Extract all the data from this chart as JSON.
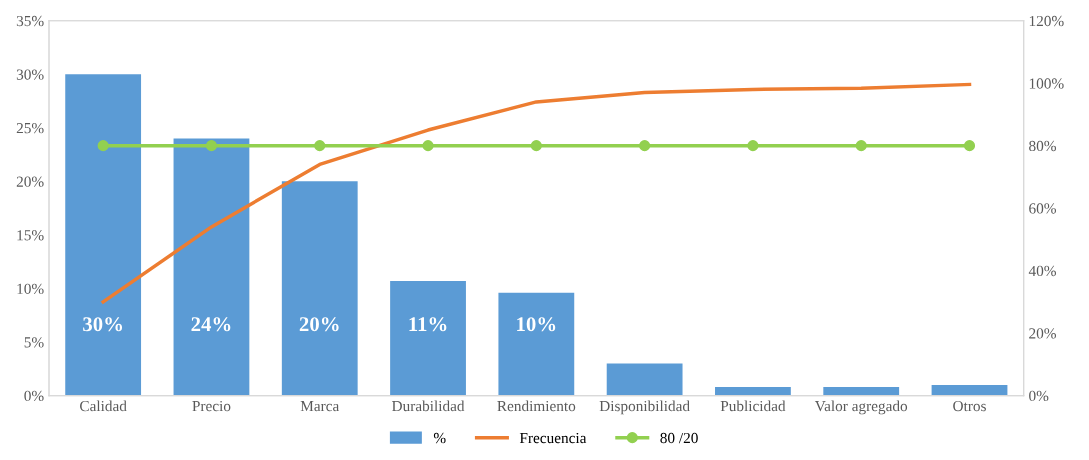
{
  "chart_data": {
    "type": "bar",
    "categories": [
      "Calidad",
      "Precio",
      "Marca",
      "Durabilidad",
      "Rendimiento",
      "Disponibilidad",
      "Publicidad",
      "Valor agregado",
      "Otros"
    ],
    "series": [
      {
        "name": "%",
        "color": "#5b9bd5",
        "values": [
          30,
          24,
          20,
          10.7,
          9.6,
          3.0,
          0.8,
          0.8,
          1.0
        ],
        "value_labels": [
          "30%",
          "24%",
          "20%",
          "11%",
          "10%",
          null,
          null,
          null,
          null
        ]
      },
      {
        "name": "Frecuencia",
        "type": "line",
        "axis": "y2",
        "color": "#ed7d31",
        "marker": "none",
        "values": [
          30,
          54,
          74,
          85,
          94,
          97,
          98,
          98.4,
          99.6
        ]
      },
      {
        "name": "80 /20",
        "type": "line",
        "axis": "y2",
        "color": "#92d050",
        "marker": "circle",
        "values": [
          80,
          80,
          80,
          80,
          80,
          80,
          80,
          80,
          80
        ]
      }
    ],
    "ylim": [
      0,
      35
    ],
    "yticks": [
      {
        "value": 0,
        "label": "0%"
      },
      {
        "value": 5,
        "label": "5%"
      },
      {
        "value": 10,
        "label": "10%"
      },
      {
        "value": 15,
        "label": "15%"
      },
      {
        "value": 20,
        "label": "20%"
      },
      {
        "value": 25,
        "label": "25%"
      },
      {
        "value": 30,
        "label": "30%"
      },
      {
        "value": 35,
        "label": "35%"
      }
    ],
    "y2lim": [
      0,
      120
    ],
    "y2ticks": [
      {
        "value": 0,
        "label": "0%"
      },
      {
        "value": 20,
        "label": "20%"
      },
      {
        "value": 40,
        "label": "40%"
      },
      {
        "value": 60,
        "label": "60%"
      },
      {
        "value": 80,
        "label": "80%"
      },
      {
        "value": 100,
        "label": "100%"
      },
      {
        "value": 120,
        "label": "120%"
      }
    ],
    "grid": false,
    "legend": "bottom"
  }
}
